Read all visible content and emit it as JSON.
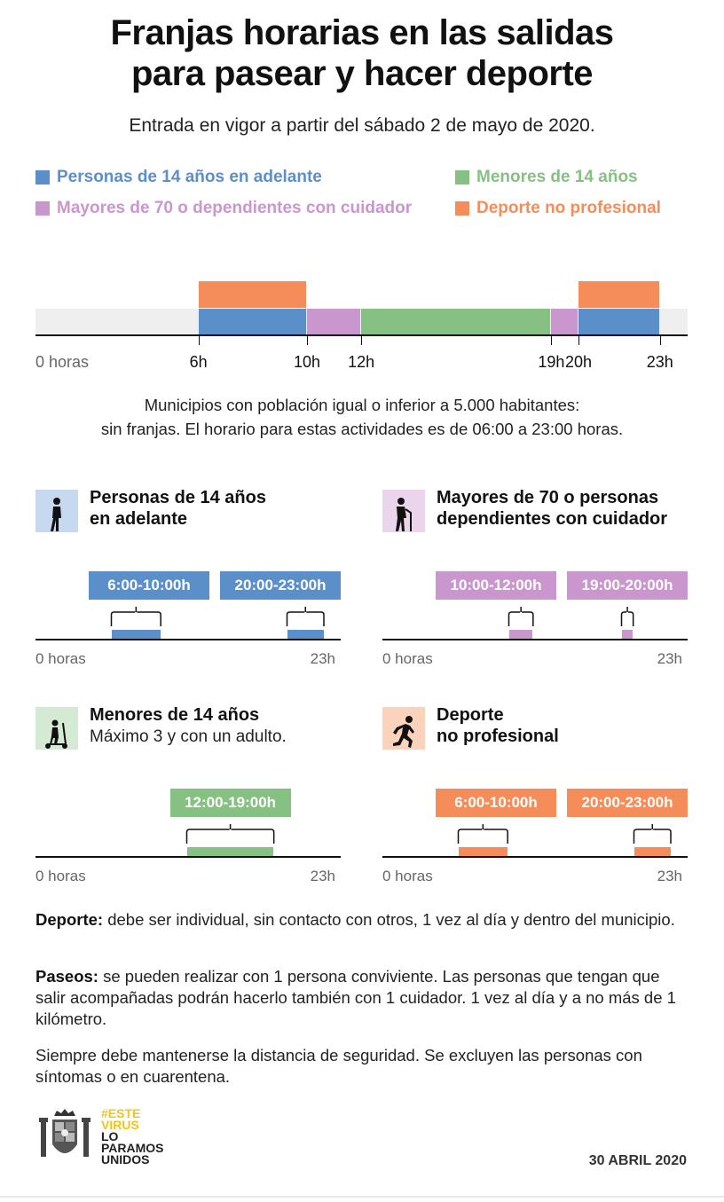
{
  "title_line1": "Franjas horarias en las salidas",
  "title_line2": "para pasear y hacer deporte",
  "subtitle": "Entrada en vigor a partir del sábado 2 de mayo de 2020.",
  "colors": {
    "blue": "#5b8fc9",
    "green": "#86c083",
    "purple": "#c996cd",
    "orange": "#f58d5a",
    "slogan_yellow": "#f0c419"
  },
  "legend": [
    {
      "label": "Personas de 14 años en adelante",
      "color": "#5b8fc9"
    },
    {
      "label": "Menores de 14 años",
      "color": "#86c083"
    },
    {
      "label": "Mayores de 70 o dependientes con cuidador",
      "color": "#c996cd"
    },
    {
      "label": "Deporte no profesional",
      "color": "#f58d5a"
    }
  ],
  "timeline": {
    "range_hours": [
      0,
      24
    ],
    "ticks": [
      "0 horas",
      "6h",
      "10h",
      "12h",
      "19h",
      "20h",
      "23h"
    ],
    "segments": [
      {
        "group": "adults",
        "from": 6,
        "to": 10,
        "color": "#5b8fc9",
        "row": "bottom"
      },
      {
        "group": "elderly",
        "from": 10,
        "to": 12,
        "color": "#c996cd",
        "row": "bottom"
      },
      {
        "group": "children",
        "from": 12,
        "to": 19,
        "color": "#86c083",
        "row": "bottom"
      },
      {
        "group": "elderly",
        "from": 19,
        "to": 20,
        "color": "#c996cd",
        "row": "bottom"
      },
      {
        "group": "adults",
        "from": 20,
        "to": 23,
        "color": "#5b8fc9",
        "row": "bottom"
      },
      {
        "group": "sport",
        "from": 6,
        "to": 10,
        "color": "#f58d5a",
        "row": "top"
      },
      {
        "group": "sport",
        "from": 20,
        "to": 23,
        "color": "#f58d5a",
        "row": "top"
      }
    ]
  },
  "note_line1": "Municipios con población igual o inferior a 5.000 habitantes:",
  "note_line2": "sin franjas. El horario para estas actividades es de 06:00 a 23:00 horas.",
  "panels": [
    {
      "id": "adults",
      "icon": "walking-person-icon",
      "title_line1": "Personas de 14 años",
      "title_line2": "en adelante",
      "subtitle": "",
      "color": "#5b8fc9",
      "icon_bg": "#c6d9ef",
      "slots": [
        {
          "label": "6:00-10:00h",
          "from": 6,
          "to": 10
        },
        {
          "label": "20:00-23:00h",
          "from": 20,
          "to": 23
        }
      ],
      "axis_start": "0 horas",
      "axis_end": "23h"
    },
    {
      "id": "elderly",
      "icon": "person-with-cane-icon",
      "title_line1": "Mayores de 70 o personas",
      "title_line2": "dependientes con cuidador",
      "subtitle": "",
      "color": "#c996cd",
      "icon_bg": "#ead5ec",
      "slots": [
        {
          "label": "10:00-12:00h",
          "from": 10,
          "to": 12
        },
        {
          "label": "19:00-20:00h",
          "from": 19,
          "to": 20
        }
      ],
      "axis_start": "0 horas",
      "axis_end": "23h"
    },
    {
      "id": "children",
      "icon": "child-on-scooter-icon",
      "title_line1": "Menores de 14 años",
      "title_line2": "",
      "subtitle": "Máximo 3 y con un adulto.",
      "color": "#86c083",
      "icon_bg": "#d4ead2",
      "slots": [
        {
          "label": "12:00-19:00h",
          "from": 12,
          "to": 19
        }
      ],
      "axis_start": "0 horas",
      "axis_end": "23h"
    },
    {
      "id": "sport",
      "icon": "running-person-icon",
      "title_line1": "Deporte",
      "title_line2": "no profesional",
      "subtitle": "",
      "color": "#f58d5a",
      "icon_bg": "#fbd3bd",
      "slots": [
        {
          "label": "6:00-10:00h",
          "from": 6,
          "to": 10
        },
        {
          "label": "20:00-23:00h",
          "from": 20,
          "to": 23
        }
      ],
      "axis_start": "0 horas",
      "axis_end": "23h"
    }
  ],
  "paragraphs": {
    "deporte_label": "Deporte:",
    "deporte_text": " debe ser individual, sin contacto con otros, 1 vez al día y dentro del municipio.",
    "paseos_label": "Paseos:",
    "paseos_text": " se pueden realizar con 1 persona conviviente. Las personas que tengan que salir acompañadas podrán hacerlo también con 1 cuidador. 1 vez al día y a no más de 1 kilómetro.",
    "seguridad_text": "Siempre debe mantenerse la distancia de seguridad. Se excluyen las personas con síntomas o en cuarentena."
  },
  "footer": {
    "slogan_line1": "#ESTE",
    "slogan_line2": "VIRUS",
    "slogan_line3": "LO",
    "slogan_line4": "PARAMOS",
    "slogan_line5": "UNIDOS",
    "date": "30 ABRIL 2020",
    "logo_icon": "coat-of-arms-icon"
  }
}
